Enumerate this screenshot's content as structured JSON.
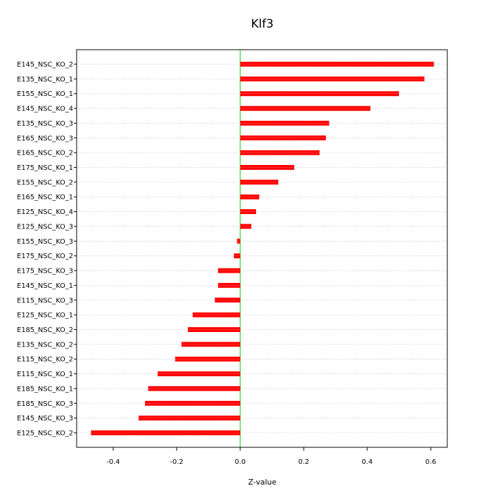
{
  "chart_data": {
    "type": "bar",
    "orientation": "horizontal",
    "title": "Klf3",
    "xlabel": "Z-value",
    "ylabel": "",
    "xlim": [
      -0.5,
      0.65
    ],
    "x_ticks": [
      "-0.4",
      "-0.2",
      "0.0",
      "0.2",
      "0.4",
      "0.6"
    ],
    "x_tick_values": [
      -0.4,
      -0.2,
      0.0,
      0.2,
      0.4,
      0.6
    ],
    "grid": true,
    "reference_line": 0,
    "categories": [
      "E145_NSC_KO_2",
      "E135_NSC_KO_1",
      "E155_NSC_KO_1",
      "E145_NSC_KO_4",
      "E135_NSC_KO_3",
      "E165_NSC_KO_3",
      "E165_NSC_KO_2",
      "E175_NSC_KO_1",
      "E155_NSC_KO_2",
      "E165_NSC_KO_1",
      "E125_NSC_KO_4",
      "E125_NSC_KO_3",
      "E155_NSC_KO_3",
      "E175_NSC_KO_2",
      "E175_NSC_KO_3",
      "E145_NSC_KO_1",
      "E115_NSC_KO_3",
      "E125_NSC_KO_1",
      "E185_NSC_KO_2",
      "E135_NSC_KO_2",
      "E115_NSC_KO_2",
      "E115_NSC_KO_1",
      "E185_NSC_KO_1",
      "E185_NSC_KO_3",
      "E145_NSC_KO_3",
      "E125_NSC_KO_2"
    ],
    "values": [
      0.61,
      0.58,
      0.5,
      0.41,
      0.28,
      0.27,
      0.25,
      0.17,
      0.12,
      0.06,
      0.05,
      0.035,
      -0.01,
      -0.02,
      -0.07,
      -0.07,
      -0.08,
      -0.15,
      -0.165,
      -0.185,
      -0.205,
      -0.26,
      -0.29,
      -0.3,
      -0.32,
      -0.47
    ],
    "colors": {
      "bar": "#ff0000",
      "bar_hatch": "#ffaaaa",
      "reference_line": "#00cc00",
      "grid": "#bbbbbb",
      "axis": "#000000"
    }
  }
}
